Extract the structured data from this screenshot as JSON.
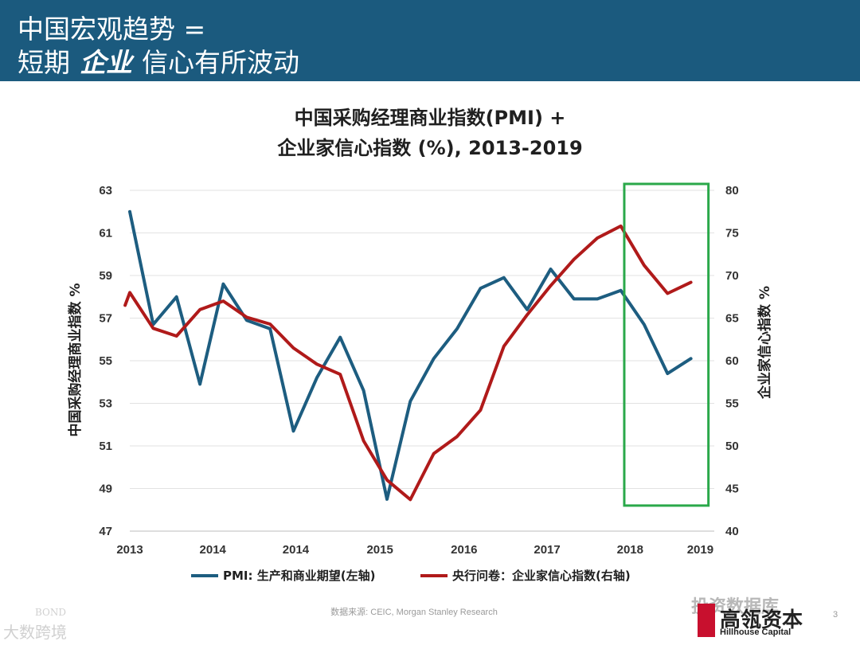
{
  "header": {
    "line1": "中国宏观趋势 =",
    "line2_pre": "短期",
    "line2_em": "企业",
    "line2_post": "信心有所波动"
  },
  "colors": {
    "header_bg": "#1b5a7e",
    "pmi": "#1d5d80",
    "confidence": "#b01a1a",
    "highlight_box": "#2aa84a"
  },
  "chart_data": {
    "type": "line",
    "title_line1": "中国采购经理商业指数(PMI) +",
    "title_line2": "企业家信心指数 (%), 2013-2019",
    "ylabel_left": "中国采购经理商业指数 %",
    "ylabel_right": "企业家信心指数 %",
    "ylim_left": [
      47,
      63
    ],
    "ylim_right": [
      40,
      80
    ],
    "yticks_left": [
      47,
      49,
      51,
      53,
      55,
      57,
      59,
      61,
      63
    ],
    "yticks_right": [
      40,
      45,
      50,
      55,
      60,
      65,
      70,
      75,
      80
    ],
    "xlim": [
      0,
      25
    ],
    "x_ticks": [
      {
        "x": 0,
        "label": "2013"
      },
      {
        "x": 3.55,
        "label": "2014"
      },
      {
        "x": 7.1,
        "label": "2014"
      },
      {
        "x": 10.7,
        "label": "2015"
      },
      {
        "x": 14.3,
        "label": "2016"
      },
      {
        "x": 17.85,
        "label": "2017"
      },
      {
        "x": 21.4,
        "label": "2018"
      },
      {
        "x": 24.4,
        "label": "2019"
      }
    ],
    "grid": true,
    "legend_position": "bottom",
    "series": [
      {
        "name": "PMI: 生产和商业期望(左轴)",
        "axis": "left",
        "points": [
          [
            0,
            62.0
          ],
          [
            1,
            56.7
          ],
          [
            2,
            58.0
          ],
          [
            3,
            53.9
          ],
          [
            4,
            58.6
          ],
          [
            5,
            56.9
          ],
          [
            6,
            56.5
          ],
          [
            7,
            51.7
          ],
          [
            8,
            54.2
          ],
          [
            9,
            56.1
          ],
          [
            10,
            53.6
          ],
          [
            11,
            48.5
          ],
          [
            12,
            53.1
          ],
          [
            13,
            55.1
          ],
          [
            14,
            56.5
          ],
          [
            15,
            58.4
          ],
          [
            16,
            58.9
          ],
          [
            17,
            57.4
          ],
          [
            18,
            59.3
          ],
          [
            19,
            57.9
          ],
          [
            20,
            57.9
          ],
          [
            21,
            58.3
          ],
          [
            22,
            56.7
          ],
          [
            23,
            54.4
          ],
          [
            24,
            55.1
          ]
        ]
      },
      {
        "name": "央行问卷：企业家信心指数(右轴)",
        "axis": "right",
        "points": [
          [
            -0.2,
            66.5
          ],
          [
            0,
            68.0
          ],
          [
            1,
            63.8
          ],
          [
            2,
            62.9
          ],
          [
            3,
            66.0
          ],
          [
            4,
            67.0
          ],
          [
            5,
            65.1
          ],
          [
            6,
            64.3
          ],
          [
            7,
            61.5
          ],
          [
            8,
            59.6
          ],
          [
            9,
            58.4
          ],
          [
            10,
            50.6
          ],
          [
            11,
            46.0
          ],
          [
            12,
            43.7
          ],
          [
            13,
            49.1
          ],
          [
            14,
            51.1
          ],
          [
            15,
            54.2
          ],
          [
            16,
            61.7
          ],
          [
            17,
            65.4
          ],
          [
            18,
            68.8
          ],
          [
            19,
            71.9
          ],
          [
            20,
            74.4
          ],
          [
            21,
            75.8
          ],
          [
            22,
            71.2
          ],
          [
            23,
            67.9
          ],
          [
            24,
            69.2
          ]
        ]
      }
    ],
    "highlight": {
      "x_from": 21.15,
      "x_to": 24.75,
      "y_left_from": 48.2,
      "y_left_to": 63.3
    }
  },
  "legend": {
    "pmi": "PMI: 生产和商业期望(左轴)",
    "confidence": "央行问卷：企业家信心指数(右轴)"
  },
  "footer": {
    "source": "数据来源: CEIC, Morgan Stanley Research",
    "page_number": "3",
    "watermark_left_top": "BOND",
    "watermark_left_bottom": "大数跨境",
    "watermark_right": "投资数据库",
    "logo_cn": "高瓴资本",
    "logo_en": "Hillhouse Capital"
  }
}
